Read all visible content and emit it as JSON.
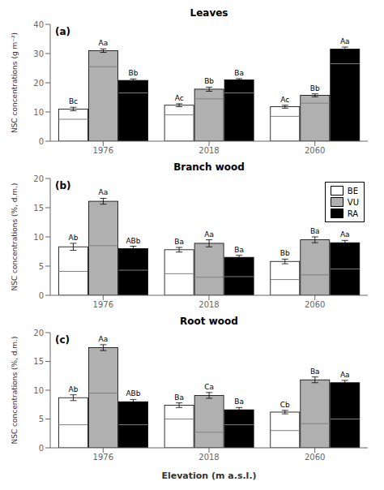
{
  "chart_data": [
    {
      "type": "bar",
      "title": "Leaves",
      "panel_label": "(a)",
      "y_label": "NSC concentrations (g m⁻²)",
      "categories": [
        "1976",
        "2018",
        "2060"
      ],
      "series": [
        {
          "name": "BE",
          "color": "white",
          "values": [
            11.0,
            12.3,
            11.8
          ],
          "errors": [
            0.6,
            0.5,
            0.5
          ],
          "midlines": [
            7.5,
            9.0,
            8.5
          ],
          "labels": [
            "Bc",
            "Ac",
            "Ac"
          ]
        },
        {
          "name": "VU",
          "color": "#b0b0b0",
          "values": [
            31.0,
            17.8,
            15.7
          ],
          "errors": [
            0.6,
            0.7,
            0.5
          ],
          "midlines": [
            25.5,
            14.5,
            13.0
          ],
          "labels": [
            "Aa",
            "Bb",
            "Bb"
          ]
        },
        {
          "name": "RA",
          "color": "black",
          "values": [
            20.8,
            21.0,
            31.5
          ],
          "errors": [
            0.5,
            0.4,
            0.7
          ],
          "midlines": [
            16.5,
            16.5,
            26.5
          ],
          "labels": [
            "Bb",
            "Ba",
            "Aa"
          ]
        }
      ],
      "ylim": [
        0,
        40
      ],
      "yticks": [
        0,
        10,
        20,
        30,
        40
      ],
      "grid": false
    },
    {
      "type": "bar",
      "title": "Branch wood",
      "panel_label": "(b)",
      "y_label": "NSC concentrations (%, d.m.)",
      "categories": [
        "1976",
        "2018",
        "2060"
      ],
      "series": [
        {
          "name": "BE",
          "color": "white",
          "values": [
            8.3,
            7.8,
            5.8
          ],
          "errors": [
            0.6,
            0.4,
            0.4
          ],
          "midlines": [
            4.1,
            3.7,
            2.7
          ],
          "labels": [
            "Ab",
            "Ba",
            "Bb"
          ]
        },
        {
          "name": "VU",
          "color": "#b0b0b0",
          "values": [
            16.1,
            8.9,
            9.5
          ],
          "errors": [
            0.5,
            0.6,
            0.5
          ],
          "midlines": [
            8.5,
            3.1,
            3.5
          ],
          "labels": [
            "Aa",
            "Aa",
            "Ba"
          ]
        },
        {
          "name": "RA",
          "color": "black",
          "values": [
            8.0,
            6.5,
            9.0
          ],
          "errors": [
            0.4,
            0.35,
            0.4
          ],
          "midlines": [
            4.3,
            3.2,
            4.5
          ],
          "labels": [
            "ABb",
            "Ba",
            "Aa"
          ]
        }
      ],
      "ylim": [
        0,
        20
      ],
      "yticks": [
        0,
        5,
        10,
        15,
        20
      ],
      "grid": false,
      "legend": "upper right"
    },
    {
      "type": "bar",
      "title": "Root wood",
      "panel_label": "(c)",
      "y_label": "NSC concentrations (%, d.m.)",
      "x_label": "Elevation (m a.s.l.)",
      "categories": [
        "1976",
        "2018",
        "2060"
      ],
      "series": [
        {
          "name": "BE",
          "color": "white",
          "values": [
            8.7,
            7.4,
            6.2
          ],
          "errors": [
            0.5,
            0.4,
            0.3
          ],
          "midlines": [
            4.0,
            5.0,
            3.0
          ],
          "labels": [
            "Ab",
            "Ba",
            "Cb"
          ]
        },
        {
          "name": "VU",
          "color": "#b0b0b0",
          "values": [
            17.4,
            9.1,
            11.8
          ],
          "errors": [
            0.5,
            0.5,
            0.5
          ],
          "midlines": [
            9.5,
            2.7,
            4.2
          ],
          "labels": [
            "Aa",
            "Ca",
            "Ba"
          ]
        },
        {
          "name": "RA",
          "color": "black",
          "values": [
            8.0,
            6.6,
            11.3
          ],
          "errors": [
            0.4,
            0.4,
            0.4
          ],
          "midlines": [
            4.0,
            4.0,
            5.0
          ],
          "labels": [
            "ABb",
            "Ba",
            "Aa"
          ]
        }
      ],
      "ylim": [
        0,
        20
      ],
      "yticks": [
        0,
        5,
        10,
        15,
        20
      ],
      "grid": false
    }
  ]
}
